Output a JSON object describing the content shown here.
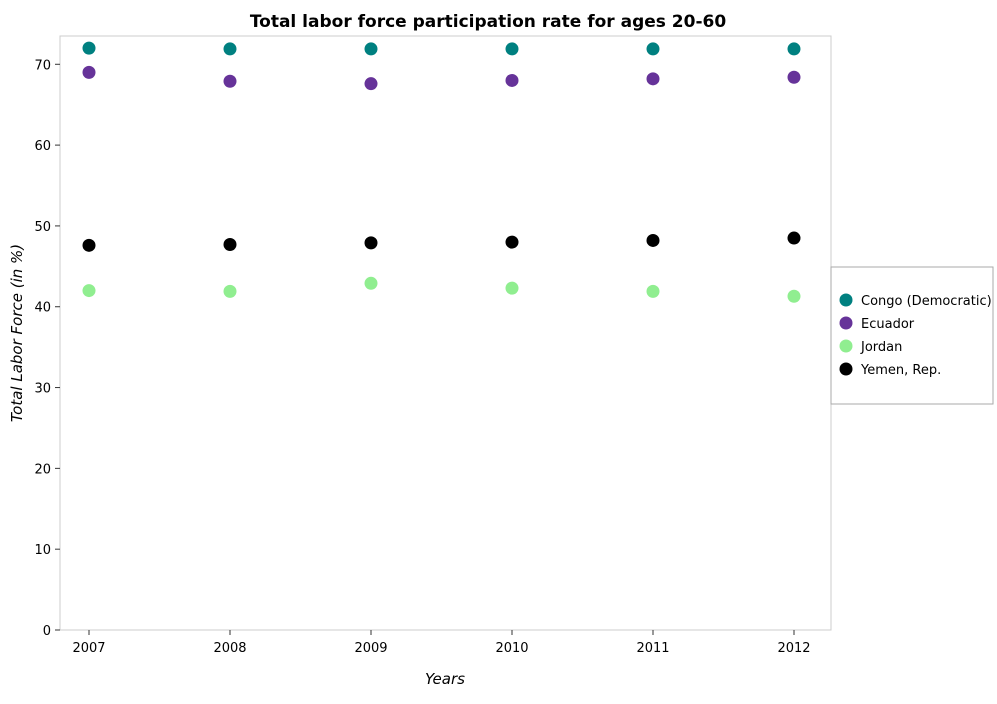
{
  "chart_data": {
    "type": "scatter",
    "title": "Total labor force participation rate for ages 20-60",
    "xlabel": "Years",
    "ylabel": "Total Labor Force (in %)",
    "categories": [
      "2007",
      "2008",
      "2009",
      "2010",
      "2011",
      "2012"
    ],
    "ylim": [
      0,
      73.5
    ],
    "yticks": [
      0,
      10,
      20,
      30,
      40,
      50,
      60,
      70
    ],
    "ytick_labels": [
      "0",
      "10",
      "20",
      "30",
      "40",
      "50",
      "60",
      "70"
    ],
    "grid": false,
    "legend_position": "right",
    "series": [
      {
        "name": "Congo (Democratic)",
        "color": "#008080",
        "values": [
          72.0,
          71.9,
          71.9,
          71.9,
          71.9,
          71.9
        ]
      },
      {
        "name": "Ecuador",
        "color": "#663399",
        "values": [
          69.0,
          67.9,
          67.6,
          68.0,
          68.2,
          68.4
        ]
      },
      {
        "name": "Jordan",
        "color": "#90ee90",
        "values": [
          42.0,
          41.9,
          42.9,
          42.3,
          41.9,
          41.3
        ]
      },
      {
        "name": "Yemen, Rep.",
        "color": "#000000",
        "values": [
          47.6,
          47.7,
          47.9,
          48.0,
          48.2,
          48.5
        ]
      }
    ]
  }
}
